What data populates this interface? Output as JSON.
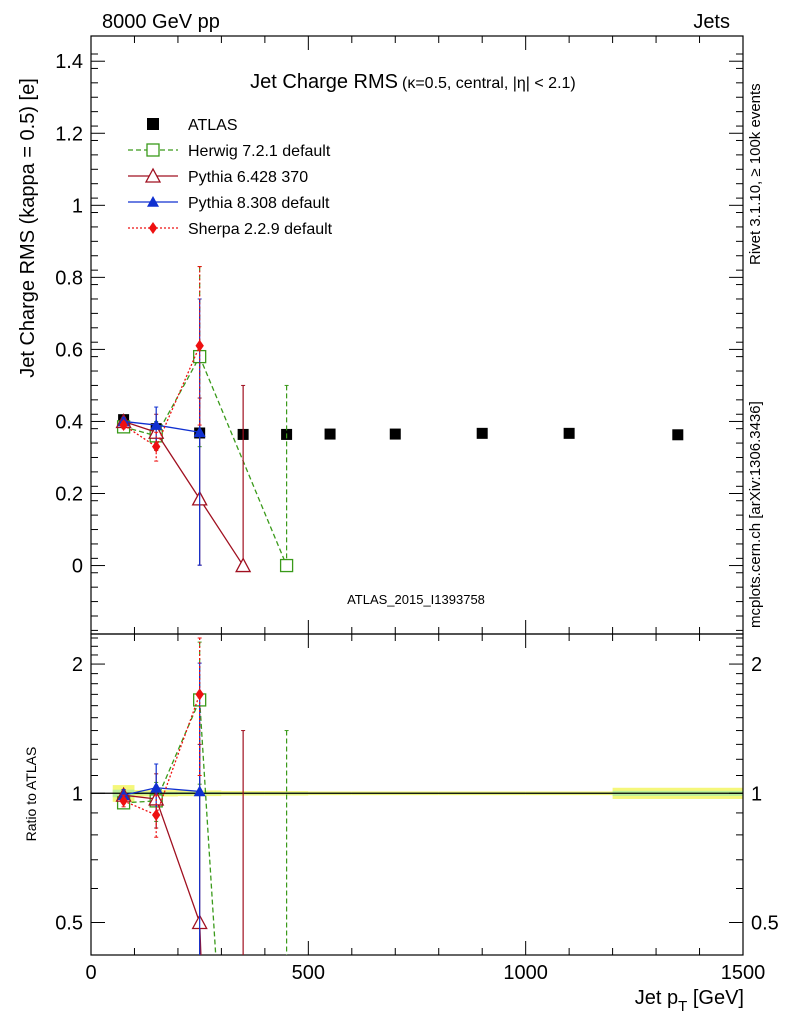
{
  "header": {
    "energy_label": "8000 GeV pp",
    "category_label": "Jets",
    "rivet_label": "Rivet 3.1.10, ≥ 100k events",
    "mcplots_label": "mcplots.cern.ch [arXiv:1306.3436]",
    "analysis_id": "ATLAS_2015_I1393758"
  },
  "colors": {
    "atlas": "#000000",
    "herwig": "#3a9a1a",
    "pythia6": "#a01020",
    "pythia8": "#1030d0",
    "sherpa": "#ee1010",
    "band_yellow": "#f5f77a",
    "band_green": "#b8ee9a"
  },
  "chart_data": [
    {
      "type": "scatter",
      "panel": "main",
      "title": "Jet Charge RMS",
      "title_suffix": "(κ=0.5, central, |η| < 2.1)",
      "xlabel": "Jet p",
      "xlabel_sub": "T",
      "xlabel_unit": " [GeV]",
      "ylabel": "Jet Charge RMS (kappa = 0.5) [e]",
      "xlim": [
        0,
        1500
      ],
      "ylim": [
        -0.19,
        1.47
      ],
      "yticks": [
        0,
        0.2,
        0.4,
        0.6,
        0.8,
        1,
        1.2,
        1.4
      ],
      "ytick_labels": [
        "0",
        "0.2",
        "0.4",
        "0.6",
        "0.8",
        "1",
        "1.2",
        "1.4"
      ],
      "legend_position": "top-left",
      "series": [
        {
          "name": "ATLAS",
          "key": "atlas",
          "marker": "filled-square",
          "x": [
            75,
            150,
            250,
            350,
            450,
            550,
            700,
            900,
            1100,
            1350
          ],
          "y": [
            0.405,
            0.38,
            0.368,
            0.364,
            0.364,
            0.365,
            0.365,
            0.367,
            0.367,
            0.363
          ],
          "err": [
            0.006,
            0.006,
            0.006,
            0.006,
            0.006,
            0.006,
            0.006,
            0.006,
            0.006,
            0.006
          ],
          "line": false
        },
        {
          "name": "Herwig 7.2.1 default",
          "key": "herwig",
          "marker": "open-square",
          "dash": "5,3",
          "x": [
            75,
            150,
            250,
            450
          ],
          "y": [
            0.385,
            0.36,
            0.58,
            0.0
          ],
          "err": [
            0.01,
            0.04,
            0.25,
            0.5
          ],
          "line": true
        },
        {
          "name": "Pythia 6.428 370",
          "key": "pythia6",
          "marker": "open-triangle",
          "dash": "",
          "x": [
            75,
            150,
            250,
            350
          ],
          "y": [
            0.4,
            0.37,
            0.185,
            0.0
          ],
          "err": [
            0.01,
            0.05,
            0.28,
            0.5
          ],
          "line": true
        },
        {
          "name": "Pythia 8.308 default",
          "key": "pythia8",
          "marker": "filled-triangle",
          "dash": "",
          "x": [
            75,
            150,
            250
          ],
          "y": [
            0.4,
            0.39,
            0.37
          ],
          "err": [
            0.01,
            0.05,
            0.37
          ],
          "line": true
        },
        {
          "name": "Sherpa 2.2.9 default",
          "key": "sherpa",
          "marker": "diamond",
          "dash": "2,2",
          "x": [
            75,
            150,
            250
          ],
          "y": [
            0.39,
            0.33,
            0.61
          ],
          "err": [
            0.01,
            0.04,
            0.22
          ],
          "line": true
        }
      ]
    },
    {
      "type": "scatter",
      "panel": "ratio",
      "ylabel": "Ratio to ATLAS",
      "scale": "log",
      "xlim": [
        0,
        1500
      ],
      "ylim": [
        0.42,
        2.35
      ],
      "xticks": [
        0,
        500,
        1000,
        1500
      ],
      "xtick_labels": [
        "0",
        "500",
        "1000",
        "1500"
      ],
      "yticks": [
        0.5,
        1,
        2
      ],
      "ytick_labels": [
        "0.5",
        "1",
        "2"
      ],
      "reference_band": [
        {
          "x0": 50,
          "x1": 100,
          "lo": 0.955,
          "hi": 1.045
        },
        {
          "x0": 100,
          "x1": 200,
          "lo": 0.983,
          "hi": 1.017
        },
        {
          "x0": 200,
          "x1": 300,
          "lo": 0.985,
          "hi": 1.015
        },
        {
          "x0": 300,
          "x1": 400,
          "lo": 0.988,
          "hi": 1.012
        },
        {
          "x0": 400,
          "x1": 500,
          "lo": 0.988,
          "hi": 1.012
        },
        {
          "x0": 500,
          "x1": 600,
          "lo": 0.99,
          "hi": 1.01
        },
        {
          "x0": 600,
          "x1": 800,
          "lo": 0.99,
          "hi": 1.01
        },
        {
          "x0": 800,
          "x1": 1000,
          "lo": 0.99,
          "hi": 1.01
        },
        {
          "x0": 1000,
          "x1": 1200,
          "lo": 0.99,
          "hi": 1.01
        },
        {
          "x0": 1200,
          "x1": 1500,
          "lo": 0.97,
          "hi": 1.03
        }
      ],
      "series": [
        {
          "key": "herwig",
          "marker": "open-square",
          "dash": "5,3",
          "x": [
            75,
            150,
            250,
            450
          ],
          "y": [
            0.95,
            0.96,
            1.65,
            0.0
          ],
          "err": [
            0.03,
            0.1,
            0.6,
            1.4
          ]
        },
        {
          "key": "pythia6",
          "marker": "open-triangle",
          "dash": "",
          "x": [
            75,
            150,
            250,
            350
          ],
          "y": [
            0.99,
            0.97,
            0.5,
            0.0
          ],
          "err": [
            0.03,
            0.14,
            0.8,
            1.4
          ]
        },
        {
          "key": "pythia8",
          "marker": "filled-triangle",
          "dash": "",
          "x": [
            75,
            150,
            250
          ],
          "y": [
            0.99,
            1.03,
            1.01
          ],
          "err": [
            0.03,
            0.14,
            1.0
          ]
        },
        {
          "key": "sherpa",
          "marker": "diamond",
          "dash": "2,2",
          "x": [
            75,
            150,
            250
          ],
          "y": [
            0.96,
            0.89,
            1.7
          ],
          "err": [
            0.03,
            0.1,
            0.6
          ]
        }
      ]
    }
  ]
}
